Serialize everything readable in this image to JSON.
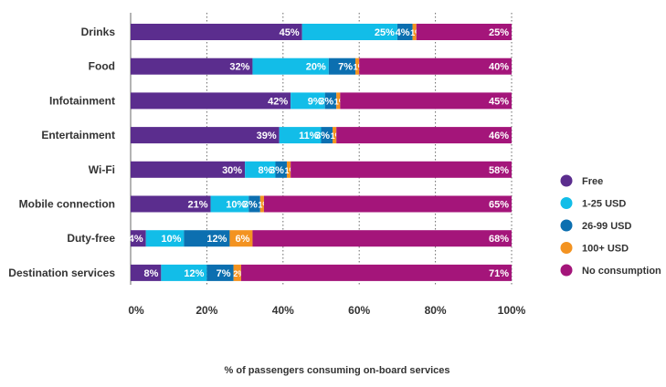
{
  "chart_data": {
    "type": "bar",
    "orientation": "horizontal",
    "stacked": true,
    "categories": [
      "Drinks",
      "Food",
      "Infotainment",
      "Entertainment",
      "Wi-Fi",
      "Mobile connection",
      "Duty-free",
      "Destination services"
    ],
    "series": [
      {
        "name": "Free",
        "color": "#5b2d8e",
        "values": [
          45,
          32,
          42,
          39,
          30,
          21,
          4,
          8
        ]
      },
      {
        "name": "1-25 USD",
        "color": "#12bde8",
        "values": [
          25,
          20,
          9,
          11,
          8,
          10,
          10,
          12
        ]
      },
      {
        "name": "26-99 USD",
        "color": "#0c6fb0",
        "values": [
          4,
          7,
          3,
          3,
          3,
          3,
          12,
          7
        ]
      },
      {
        "name": "100+ USD",
        "color": "#f39321",
        "values": [
          1,
          1,
          1,
          1,
          1,
          1,
          6,
          2
        ]
      },
      {
        "name": "No consumption",
        "color": "#a4157a",
        "values": [
          25,
          40,
          45,
          46,
          58,
          65,
          68,
          71
        ]
      }
    ],
    "xlim": [
      0,
      100
    ],
    "xticks": [
      "0%",
      "20%",
      "40%",
      "60%",
      "80%",
      "100%"
    ],
    "xlabel": "% of passengers consuming on-board services",
    "grid": "vertical-dotted",
    "legend_position": "right"
  }
}
